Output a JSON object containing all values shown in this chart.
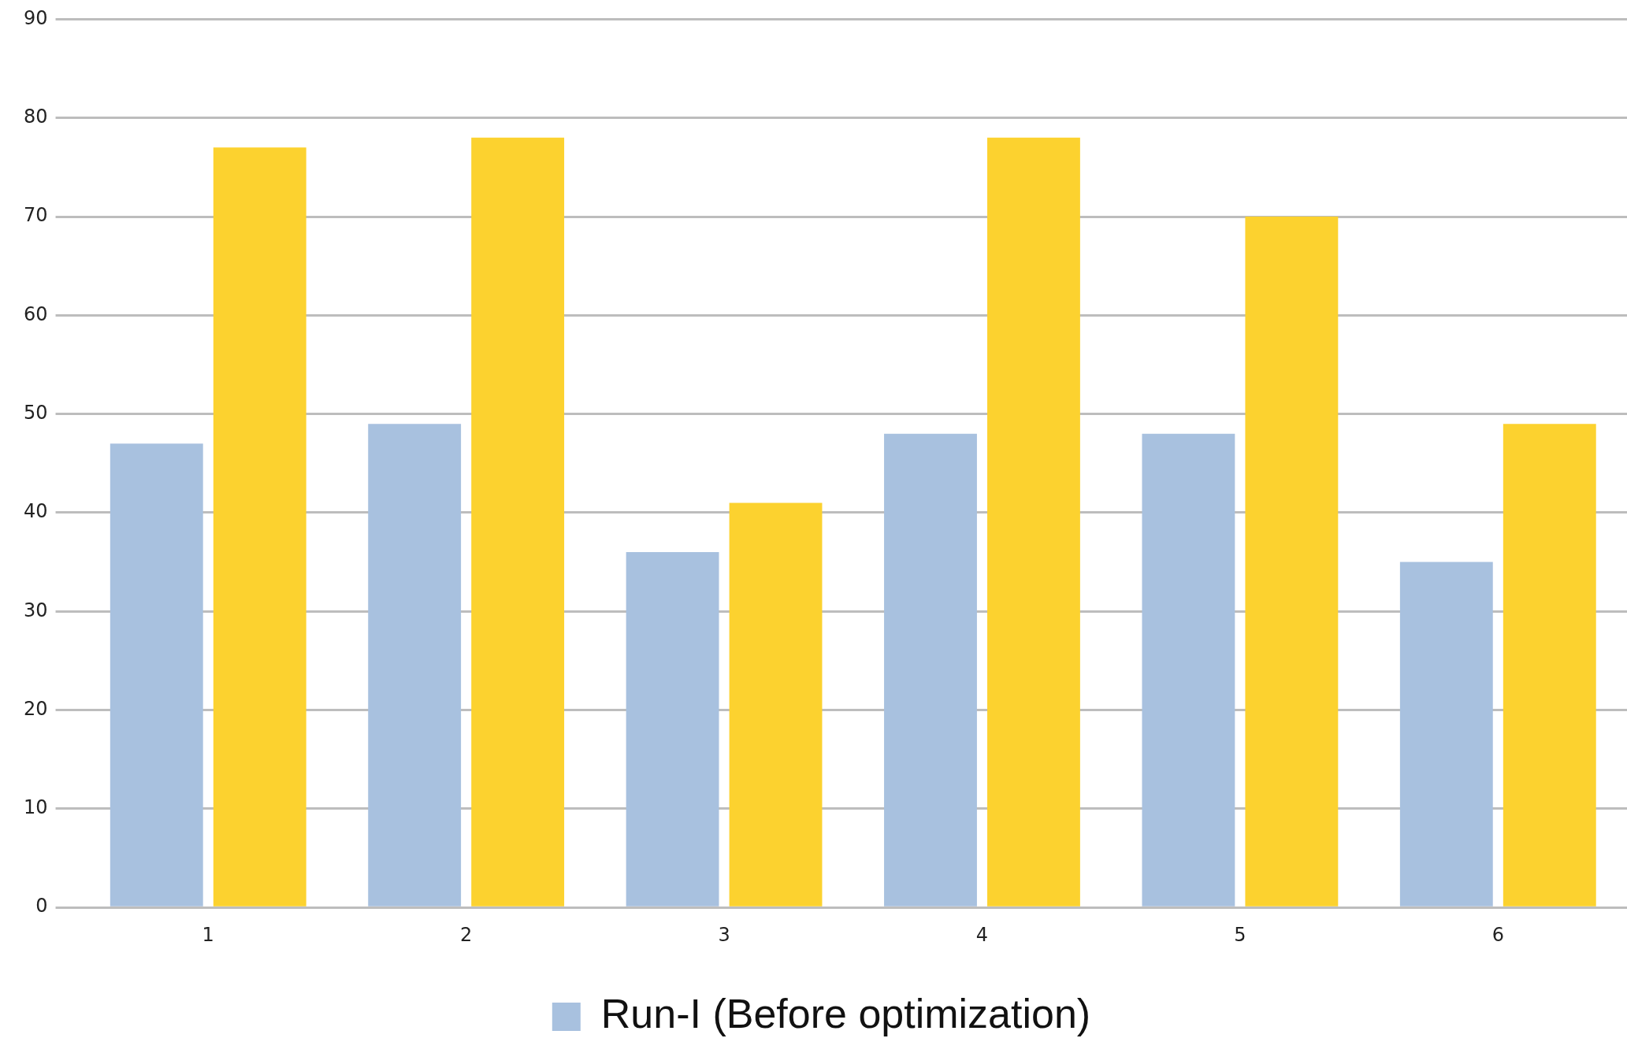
{
  "chart_data": {
    "type": "bar",
    "categories": [
      "1",
      "2",
      "3",
      "4",
      "5",
      "6"
    ],
    "series": [
      {
        "name": "Run-I (Before optimization)",
        "color": "#a8c1df",
        "values": [
          47,
          49,
          36,
          48,
          48,
          35
        ]
      },
      {
        "color": "#fcd22f",
        "values": [
          77,
          78,
          41,
          78,
          70,
          49
        ]
      }
    ],
    "ylim": [
      0,
      90
    ],
    "yticks": [
      0,
      10,
      20,
      30,
      40,
      50,
      60,
      70,
      80,
      90
    ],
    "grid": "y",
    "legend": "bottom"
  }
}
